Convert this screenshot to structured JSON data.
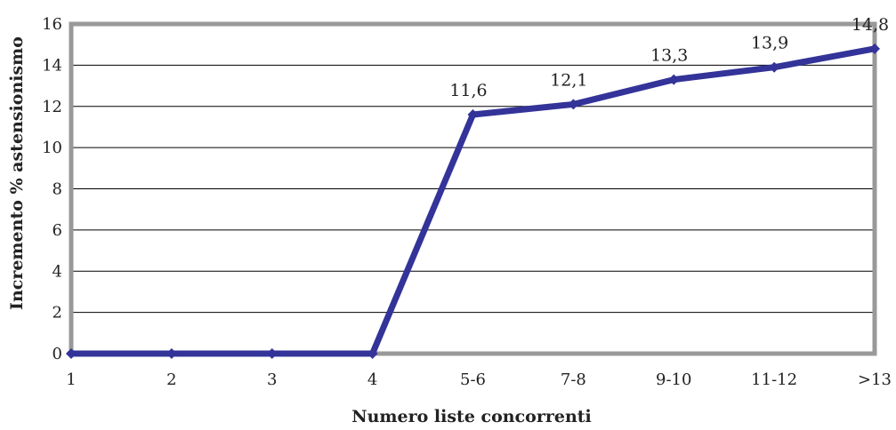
{
  "chart_data": {
    "type": "line",
    "title": "",
    "xlabel": "Numero liste concorrenti",
    "ylabel": "Incremento % astensionismo",
    "ylim": [
      0,
      16
    ],
    "yticks": [
      "0",
      "2",
      "4",
      "6",
      "8",
      "10",
      "12",
      "14",
      "16"
    ],
    "categories": [
      "1",
      "2",
      "3",
      "4",
      "5-6",
      "7-8",
      "9-10",
      "11-12",
      ">13"
    ],
    "values": [
      0,
      0,
      0,
      0,
      11.6,
      12.1,
      13.3,
      13.9,
      14.8
    ],
    "data_labels": [
      "",
      "",
      "",
      "",
      "11,6",
      "12,1",
      "13,3",
      "13,9",
      "14,8"
    ],
    "series_color": "#333399",
    "plot_border_color": "#999999",
    "gridlines": true,
    "legend": false
  }
}
